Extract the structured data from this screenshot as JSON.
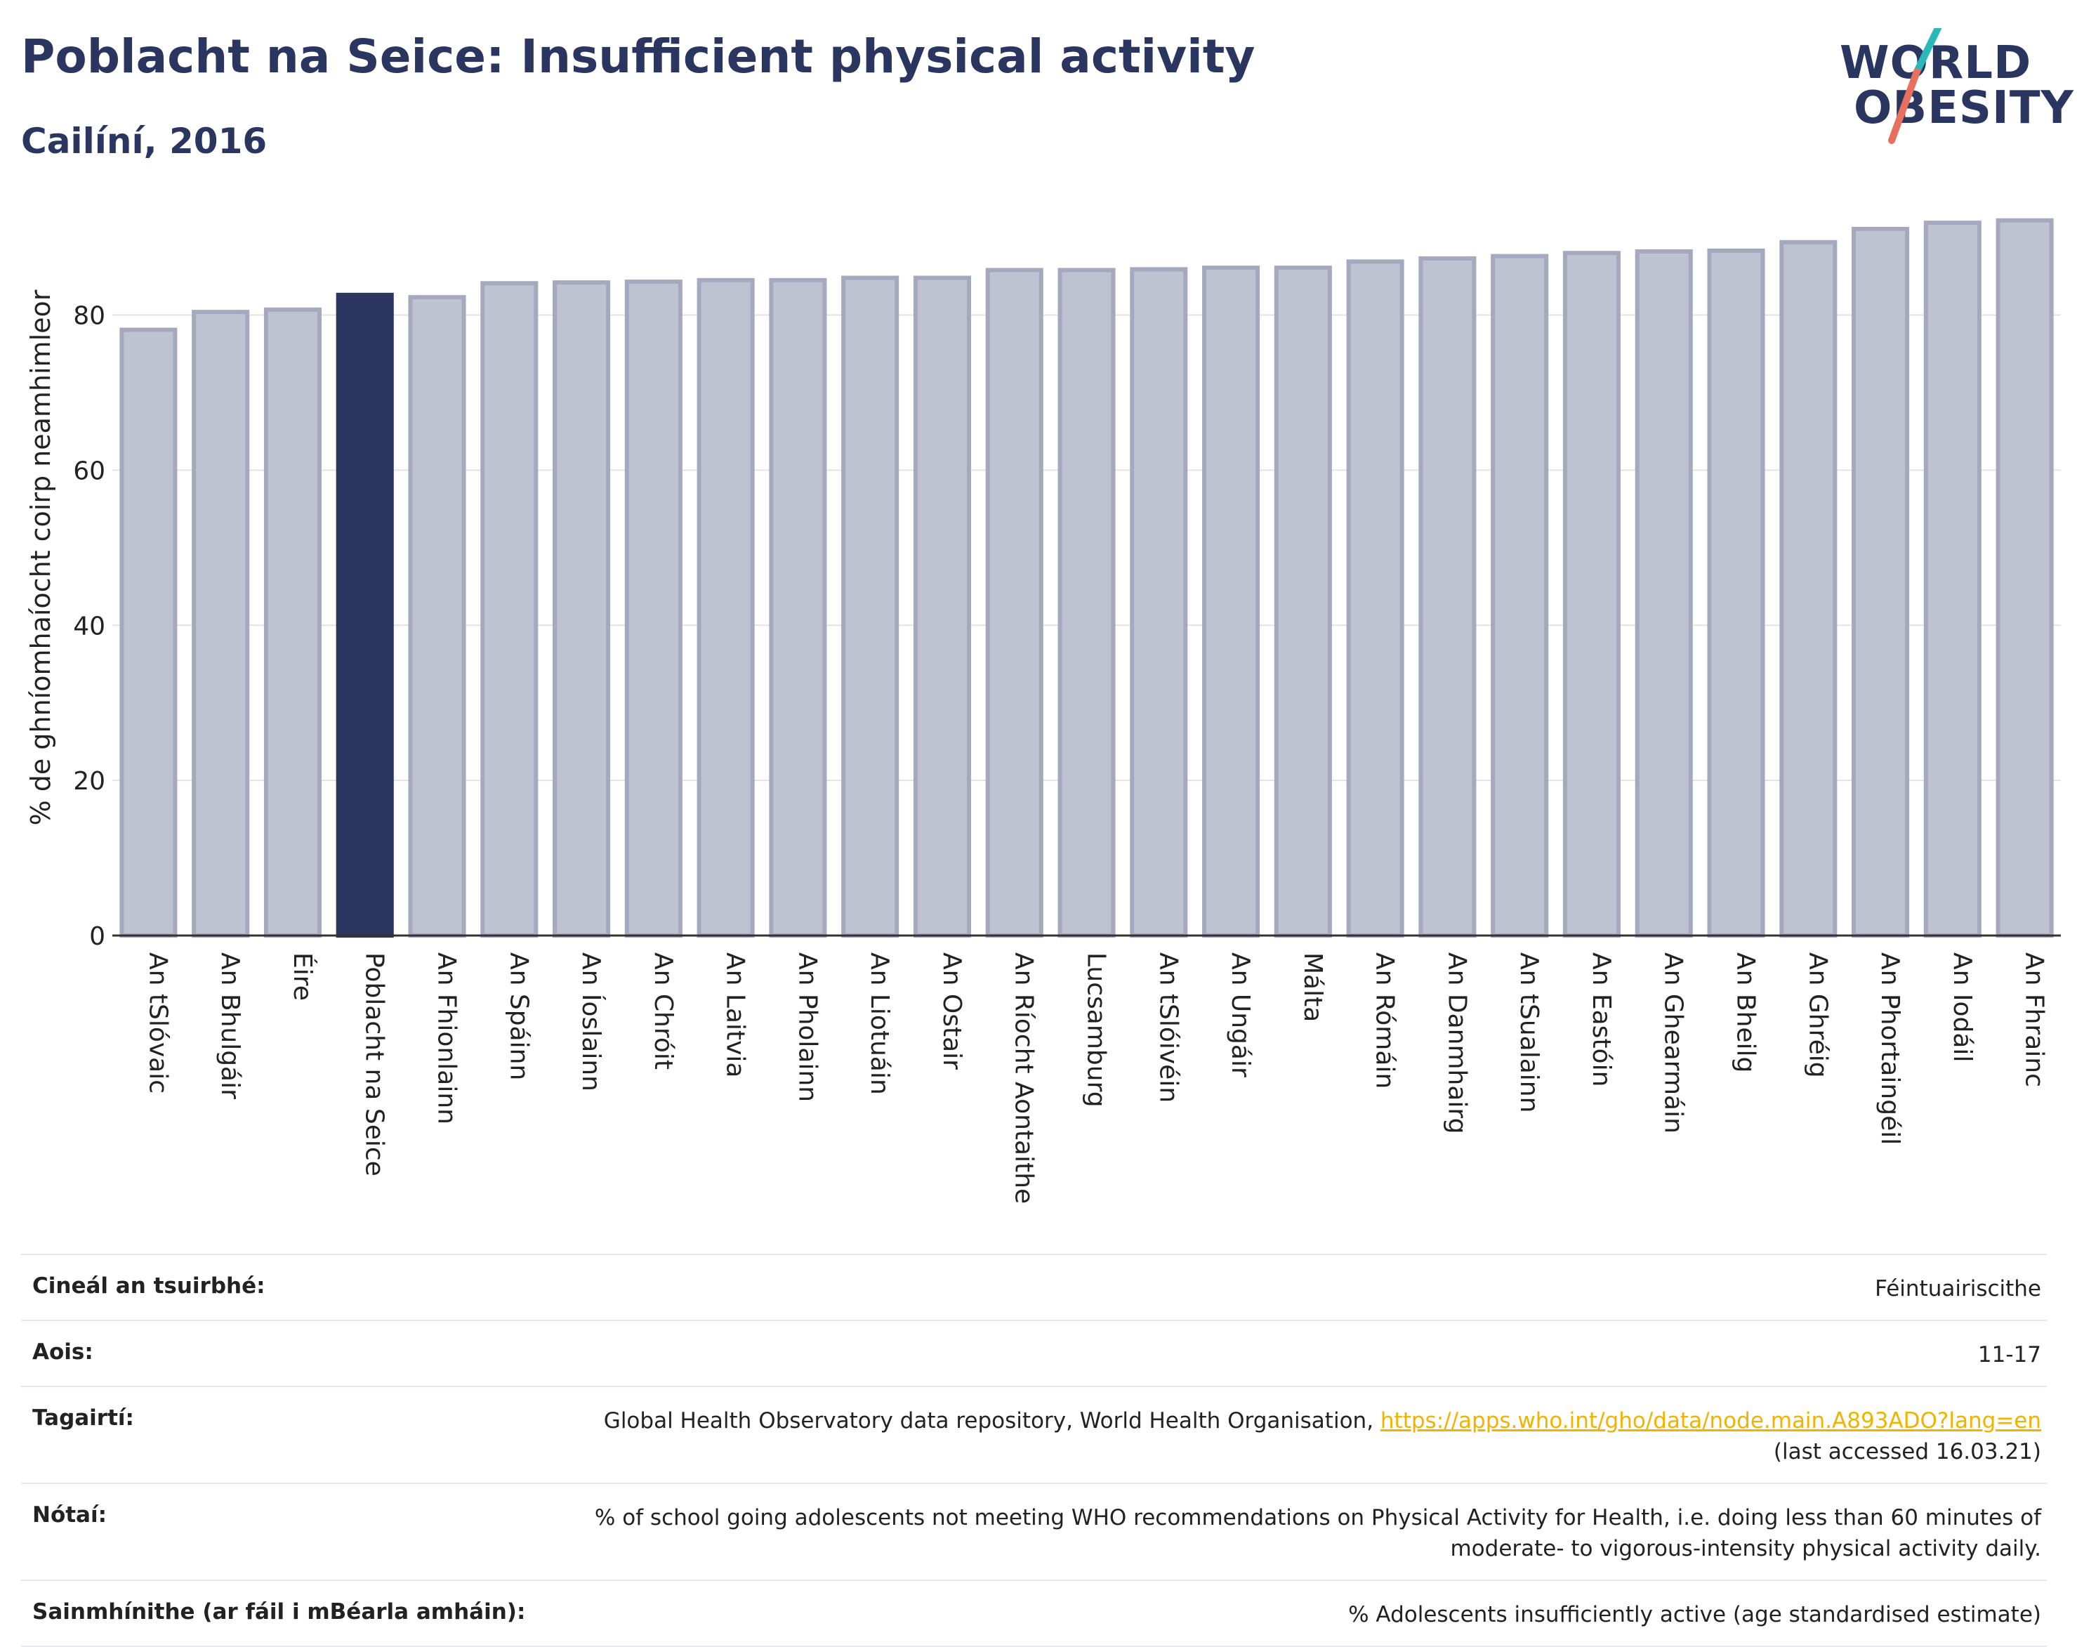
{
  "header": {
    "title": "Poblacht na Seice: Insufficient physical activity",
    "subtitle": "Cailíní, 2016"
  },
  "logo": {
    "line1": "WORLD",
    "line2": "OBESITY"
  },
  "colors": {
    "highlight_bar": "#2a3560",
    "other_bar": "#bfc2d0",
    "other_bar_edge": "#a4a9be",
    "text_dark": "#2a3560",
    "link": "#f0b400",
    "logo_slash_top": "#2bb8b8",
    "logo_slash_bottom": "#e8705e"
  },
  "chart_data": {
    "type": "bar",
    "ylabel": "% de ghníomhaíocht coirp neamhimleor",
    "xlabel": "",
    "ylim": [
      0,
      93
    ],
    "yticks": [
      0,
      20,
      40,
      60,
      80
    ],
    "grid": true,
    "highlight": "Poblacht na Seice",
    "categories": [
      "An tSlóvaic",
      "An Bhulgáir",
      "Éire",
      "Poblacht na Seice",
      "An Fhionlainn",
      "An Spáinn",
      "An Íoslainn",
      "An Chróit",
      "An Laitvia",
      "An Pholainn",
      "An Liotuáin",
      "An Ostair",
      "An Ríocht Aontaithe",
      "Lucsamburg",
      "An tSlóivéin",
      "An Ungáir",
      "Málta",
      "An Rómáin",
      "An Danmhairg",
      "An tSualainn",
      "An Eastóin",
      "An Ghearmáin",
      "An Bheilg",
      "An Ghréig",
      "An Phortaingéil",
      "An Iodáil",
      "An Fhrainc"
    ],
    "values": [
      78.1,
      80.4,
      80.7,
      82.6,
      82.3,
      84.1,
      84.2,
      84.3,
      84.5,
      84.5,
      84.8,
      84.8,
      85.8,
      85.8,
      85.9,
      86.1,
      86.1,
      86.9,
      87.3,
      87.6,
      88.0,
      88.2,
      88.3,
      89.4,
      91.1,
      91.9,
      92.2
    ]
  },
  "info_table": [
    {
      "key": "Cineál an tsuirbhé:",
      "value": "Féintuairiscithe"
    },
    {
      "key": "Aois:",
      "value": "11-17"
    },
    {
      "key": "Tagairtí:",
      "value": "Global Health Observatory data repository, World Health Organisation, ",
      "link": "https://apps.who.int/gho/data/node.main.A893ADO?lang=en",
      "value2": "(last accessed 16.03.21)"
    },
    {
      "key": "Nótaí:",
      "value": "% of school going adolescents not meeting WHO recommendations on Physical Activity for Health, i.e. doing less than 60 minutes of",
      "value2": "moderate- to vigorous-intensity physical activity daily."
    },
    {
      "key": "Sainmhínithe (ar fáil i mBéarla amháin):",
      "value": "% Adolescents insufficiently active (age standardised estimate)"
    }
  ]
}
